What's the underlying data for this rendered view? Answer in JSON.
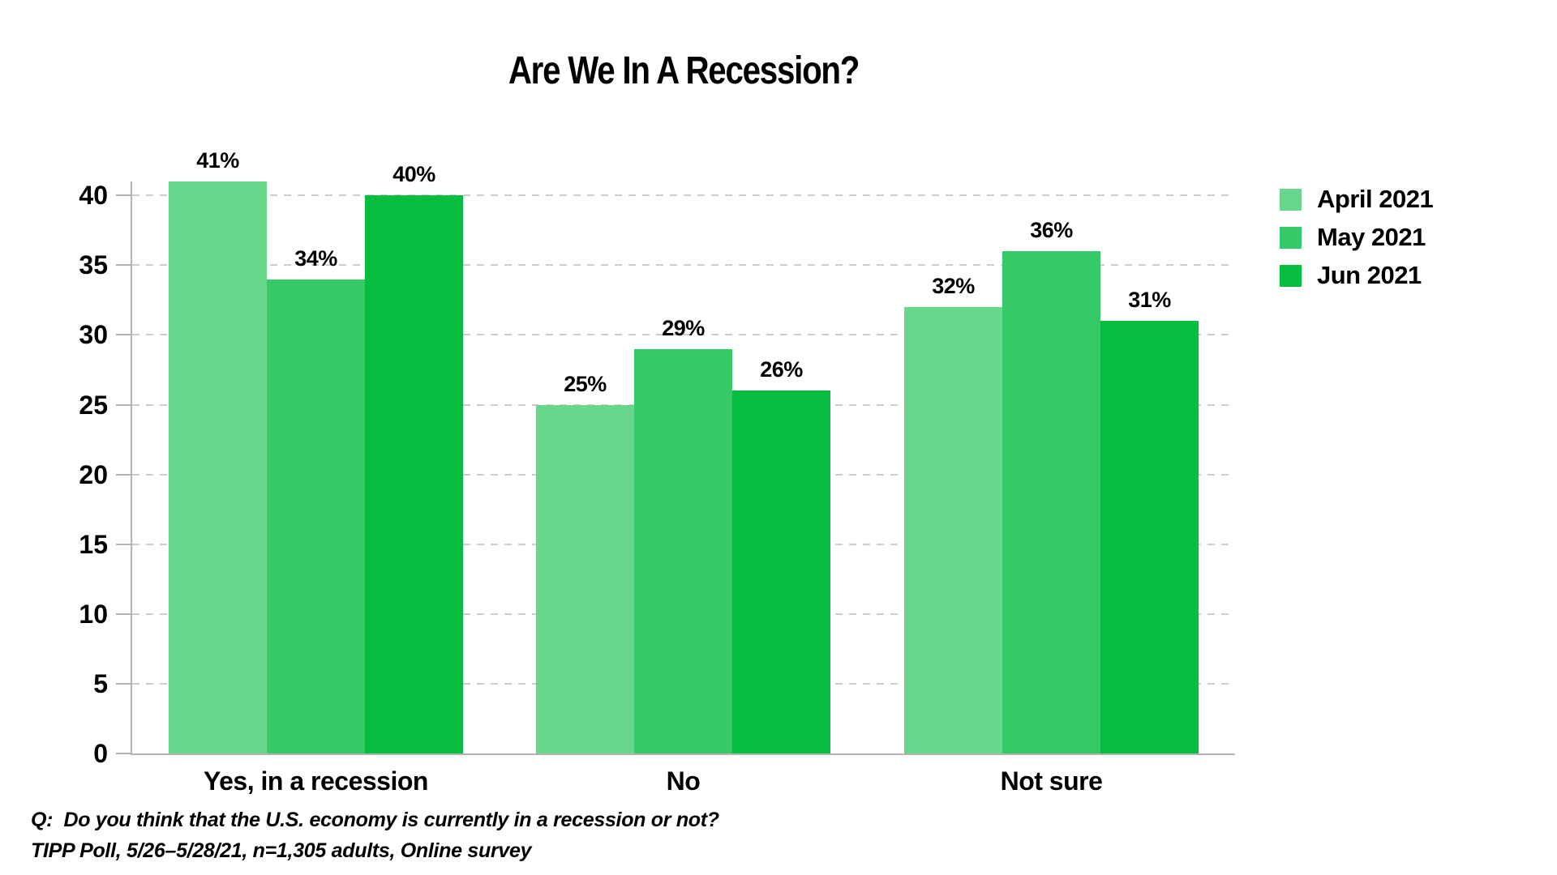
{
  "title": "Are We In A Recession?",
  "chart_data": {
    "type": "bar",
    "categories": [
      "Yes, in a recession",
      "No",
      "Not sure"
    ],
    "series": [
      {
        "name": "April 2021",
        "color": "#68D78B",
        "values": [
          41,
          25,
          32
        ]
      },
      {
        "name": "May 2021",
        "color": "#35C967",
        "values": [
          34,
          29,
          36
        ]
      },
      {
        "name": "Jun 2021",
        "color": "#05BD3E",
        "values": [
          40,
          26,
          31
        ]
      }
    ],
    "value_suffix": "%",
    "value_labels": [
      [
        "41%",
        "34%",
        "40%"
      ],
      [
        "25%",
        "29%",
        "26%"
      ],
      [
        "32%",
        "36%",
        "31%"
      ]
    ],
    "xlabel": "",
    "ylabel": "",
    "ylim": [
      0,
      41
    ],
    "yticks": [
      0,
      5,
      10,
      15,
      20,
      25,
      30,
      35,
      40
    ],
    "grid": "horizontal-dashed",
    "legend_position": "right",
    "axis_color": "#b4b4b4",
    "grid_color": "#cdcdcd",
    "text_color": "#000000"
  },
  "footer": {
    "question": "Q:  Do you think that the U.S. economy is currently in a recession or not?",
    "source": "TIPP Poll, 5/26–5/28/21, n=1,305 adults, Online survey"
  }
}
